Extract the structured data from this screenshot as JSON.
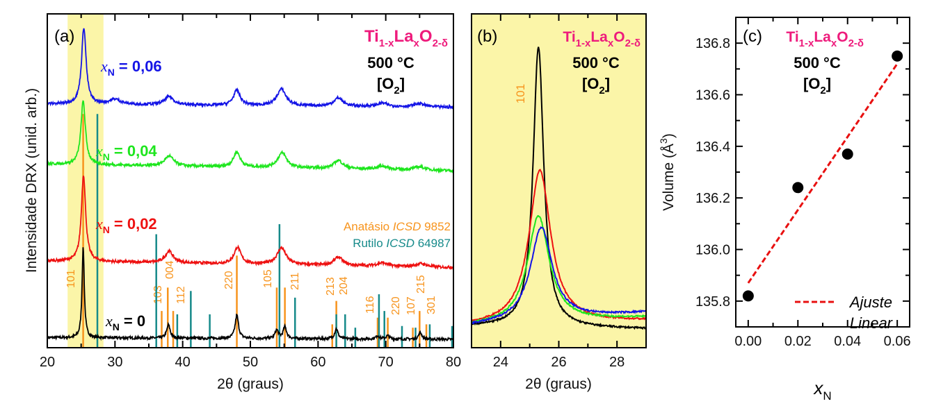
{
  "colors": {
    "x0": "#000000",
    "x002": "#ee1111",
    "x004": "#1ee61e",
    "x006": "#1414e6",
    "anatase": "#f7941d",
    "rutile": "#168a8a",
    "formula": "#ee1b7c",
    "highlight": "#fbf5a8",
    "fit": "#e81010"
  },
  "formula": {
    "m1": "Ti",
    "s1": "1-x",
    "m2": "La",
    "s2": "x",
    "m3": "O",
    "s3": "2-δ"
  },
  "condition": {
    "temp": "500 °C",
    "atm_open": "[O",
    "atm_sub": "2",
    "atm_close": "]"
  },
  "chart_data": [
    {
      "panel": "(a)",
      "type": "line",
      "xlabel": "2θ (graus)",
      "ylabel": "Intensidade DRX (unid. arb.)",
      "xlim": [
        20,
        80
      ],
      "ylim": [
        0,
        100
      ],
      "xticks": [
        20,
        30,
        40,
        50,
        60,
        70,
        80
      ],
      "y_tick_labels": false,
      "highlight_range": [
        23,
        28.3
      ],
      "series": [
        {
          "key": "x0",
          "label_var": "x",
          "label_sub": "N",
          "label_val": "= 0",
          "baseline": [
            3,
            2.5
          ],
          "peaks": [
            [
              25.3,
              27,
              0.2
            ],
            [
              37.9,
              4,
              0.3
            ],
            [
              48.0,
              7,
              0.3
            ],
            [
              53.9,
              2.5,
              0.3
            ],
            [
              55.1,
              3.5,
              0.3
            ],
            [
              62.7,
              3,
              0.3
            ],
            [
              68.8,
              1,
              0.3
            ],
            [
              70.3,
              1,
              0.3
            ],
            [
              75.1,
              2,
              0.3
            ]
          ]
        },
        {
          "key": "x002",
          "label_var": "x",
          "label_sub": "N",
          "label_val": "= 0,02",
          "baseline": [
            26,
            24
          ],
          "peaks": [
            [
              25.35,
              26,
              0.38
            ],
            [
              38,
              3.5,
              0.7
            ],
            [
              48.1,
              5,
              0.6
            ],
            [
              54.6,
              5,
              0.8
            ],
            [
              63,
              2.5,
              0.8
            ],
            [
              69.5,
              1,
              1
            ],
            [
              75.2,
              1,
              1
            ]
          ]
        },
        {
          "key": "x004",
          "label_var": "x",
          "label_sub": "N",
          "label_val": "= 0,04",
          "baseline": [
            55,
            53
          ],
          "peaks": [
            [
              25.3,
              19,
              0.4
            ],
            [
              38,
              3,
              0.8
            ],
            [
              48,
              4.5,
              0.6
            ],
            [
              54.7,
              4.5,
              0.8
            ],
            [
              63,
              2.5,
              0.8
            ],
            [
              69.5,
              1,
              1
            ],
            [
              75,
              1,
              1
            ]
          ]
        },
        {
          "key": "x006",
          "label_var": "x",
          "label_sub": "N",
          "label_val": "= 0,06",
          "baseline": [
            73,
            72
          ],
          "peaks": [
            [
              25.4,
              23,
              0.4
            ],
            [
              30,
              1.5,
              1
            ],
            [
              38,
              2.5,
              0.8
            ],
            [
              48,
              4.5,
              0.6
            ],
            [
              54.6,
              5,
              0.8
            ],
            [
              63,
              2.5,
              0.8
            ],
            [
              69.5,
              1,
              1
            ],
            [
              75,
              1,
              1
            ]
          ]
        }
      ],
      "references": {
        "anatase": {
          "label_name": "Anatásio ",
          "label_db": "ICSD",
          "label_num": " 9852",
          "sticks": [
            {
              "pos": 25.3,
              "h": 70,
              "hkl": "101"
            },
            {
              "pos": 36.9,
              "h": 11,
              "hkl": "103"
            },
            {
              "pos": 37.8,
              "h": 18,
              "hkl": "004"
            },
            {
              "pos": 38.6,
              "h": 11,
              "hkl": "112"
            },
            {
              "pos": 48.0,
              "h": 27.6,
              "hkl": "220"
            },
            {
              "pos": 53.9,
              "h": 18,
              "hkl": "105"
            },
            {
              "pos": 55.1,
              "h": 18,
              "hkl": "211"
            },
            {
              "pos": 62.1,
              "h": 7,
              "hkl": "213"
            },
            {
              "pos": 62.7,
              "h": 14,
              "hkl": "204"
            },
            {
              "pos": 68.8,
              "h": 9,
              "hkl": "116"
            },
            {
              "pos": 70.3,
              "h": 9,
              "hkl": "220"
            },
            {
              "pos": 74.0,
              "h": 6,
              "hkl": "107"
            },
            {
              "pos": 75.0,
              "h": 11,
              "hkl": "215"
            },
            {
              "pos": 76.0,
              "h": 7,
              "hkl": "301"
            }
          ]
        },
        "rutile": {
          "label_name": "Rutilo ",
          "label_db": "ICSD",
          "label_num": " 64987",
          "sticks": [
            {
              "pos": 27.4,
              "h": 70
            },
            {
              "pos": 36.1,
              "h": 34
            },
            {
              "pos": 39.2,
              "h": 10
            },
            {
              "pos": 41.2,
              "h": 17
            },
            {
              "pos": 44.0,
              "h": 10
            },
            {
              "pos": 54.3,
              "h": 37
            },
            {
              "pos": 56.6,
              "h": 15
            },
            {
              "pos": 62.7,
              "h": 10
            },
            {
              "pos": 64.0,
              "h": 10
            },
            {
              "pos": 65.5,
              "h": 6
            },
            {
              "pos": 69.0,
              "h": 16
            },
            {
              "pos": 69.8,
              "h": 11
            },
            {
              "pos": 72.4,
              "h": 6.5
            },
            {
              "pos": 74.4,
              "h": 6
            },
            {
              "pos": 76.5,
              "h": 7
            },
            {
              "pos": 79.8,
              "h": 6.5
            }
          ]
        }
      }
    },
    {
      "panel": "(b)",
      "type": "line",
      "xlabel": "2θ (graus)",
      "xlim": [
        23,
        29
      ],
      "ylim": [
        0,
        100
      ],
      "xticks": [
        24,
        26,
        28
      ],
      "y_tick_labels": false,
      "annotation": "101",
      "series": [
        {
          "key": "x0",
          "baseline": [
            6.5,
            5.6
          ],
          "peaks": [
            [
              25.3,
              84,
              0.22
            ]
          ]
        },
        {
          "key": "x002",
          "baseline": [
            6.5,
            8
          ],
          "peaks": [
            [
              25.35,
              46,
              0.45
            ]
          ]
        },
        {
          "key": "x004",
          "baseline": [
            6.5,
            9
          ],
          "peaks": [
            [
              25.3,
              32,
              0.45
            ]
          ]
        },
        {
          "key": "x006",
          "baseline": [
            6.5,
            10.5
          ],
          "peaks": [
            [
              25.4,
              28,
              0.45
            ]
          ]
        }
      ]
    },
    {
      "panel": "(c)",
      "type": "scatter",
      "xlabel_var": "x",
      "xlabel_sub": "N",
      "ylabel": "Volume (Å",
      "ylabel_sup": "3",
      "ylabel_close": ")",
      "xlim": [
        -0.005,
        0.065
      ],
      "ylim": [
        135.7,
        136.9
      ],
      "xticks": [
        "0.00",
        "0.02",
        "0.04",
        "0.06"
      ],
      "yticks": [
        "135.8",
        "136.0",
        "136.2",
        "136.4",
        "136.6",
        "136.8"
      ],
      "points": {
        "x": [
          0.0,
          0.02,
          0.04,
          0.06
        ],
        "y": [
          135.82,
          136.24,
          136.37,
          136.75
        ]
      },
      "fit": {
        "label_1": "Ajuste",
        "label_2": "Linear",
        "x": [
          0.0,
          0.06
        ],
        "y": [
          135.87,
          136.72
        ]
      }
    }
  ]
}
